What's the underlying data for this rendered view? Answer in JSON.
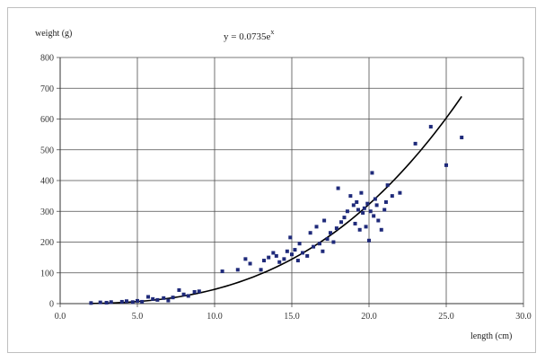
{
  "chart_data": {
    "type": "scatter",
    "xlabel": "length (cm)",
    "ylabel": "weight (g)",
    "equation": {
      "base": "y = 0.0735e",
      "exponent": "x"
    },
    "xlim": [
      0,
      30
    ],
    "ylim": [
      0,
      800
    ],
    "x_ticks": [
      "0.0",
      "5.0",
      "10.0",
      "15.0",
      "20.0",
      "25.0",
      "30.0"
    ],
    "y_ticks": [
      "0",
      "100",
      "200",
      "300",
      "400",
      "500",
      "600",
      "700",
      "800"
    ],
    "grid": true,
    "marker_color": "#1f2a7a",
    "trend_color": "#000000",
    "trendline": {
      "type": "power",
      "a": 0.0735,
      "b": 2.8,
      "x_start": 2,
      "x_end": 26
    },
    "points": [
      [
        2.0,
        2
      ],
      [
        2.6,
        4
      ],
      [
        3.0,
        3
      ],
      [
        3.3,
        5
      ],
      [
        4.0,
        6
      ],
      [
        4.3,
        8
      ],
      [
        4.7,
        5
      ],
      [
        5.0,
        9
      ],
      [
        5.3,
        6
      ],
      [
        5.7,
        22
      ],
      [
        6.0,
        15
      ],
      [
        6.3,
        12
      ],
      [
        6.7,
        18
      ],
      [
        7.0,
        10
      ],
      [
        7.3,
        20
      ],
      [
        7.7,
        44
      ],
      [
        8.0,
        30
      ],
      [
        8.3,
        25
      ],
      [
        8.7,
        38
      ],
      [
        9.0,
        40
      ],
      [
        10.5,
        105
      ],
      [
        11.5,
        110
      ],
      [
        12.0,
        145
      ],
      [
        12.3,
        130
      ],
      [
        13.0,
        110
      ],
      [
        13.2,
        140
      ],
      [
        13.5,
        150
      ],
      [
        13.8,
        165
      ],
      [
        14.0,
        155
      ],
      [
        14.2,
        135
      ],
      [
        14.5,
        145
      ],
      [
        14.7,
        170
      ],
      [
        14.9,
        215
      ],
      [
        15.0,
        160
      ],
      [
        15.2,
        175
      ],
      [
        15.4,
        140
      ],
      [
        15.5,
        195
      ],
      [
        15.7,
        165
      ],
      [
        16.0,
        155
      ],
      [
        16.2,
        230
      ],
      [
        16.4,
        185
      ],
      [
        16.6,
        250
      ],
      [
        16.8,
        195
      ],
      [
        17.0,
        170
      ],
      [
        17.1,
        270
      ],
      [
        17.3,
        210
      ],
      [
        17.5,
        230
      ],
      [
        17.7,
        200
      ],
      [
        17.9,
        245
      ],
      [
        18.0,
        375
      ],
      [
        18.2,
        265
      ],
      [
        18.4,
        280
      ],
      [
        18.6,
        300
      ],
      [
        18.8,
        350
      ],
      [
        19.0,
        320
      ],
      [
        19.1,
        260
      ],
      [
        19.2,
        330
      ],
      [
        19.3,
        305
      ],
      [
        19.4,
        240
      ],
      [
        19.5,
        360
      ],
      [
        19.6,
        295
      ],
      [
        19.7,
        310
      ],
      [
        19.8,
        250
      ],
      [
        19.9,
        325
      ],
      [
        20.0,
        205
      ],
      [
        20.1,
        300
      ],
      [
        20.2,
        425
      ],
      [
        20.3,
        285
      ],
      [
        20.4,
        340
      ],
      [
        20.5,
        320
      ],
      [
        20.6,
        270
      ],
      [
        20.8,
        240
      ],
      [
        21.0,
        305
      ],
      [
        21.1,
        330
      ],
      [
        21.2,
        385
      ],
      [
        21.5,
        350
      ],
      [
        22.0,
        360
      ],
      [
        23.0,
        520
      ],
      [
        24.0,
        575
      ],
      [
        25.0,
        450
      ],
      [
        26.0,
        540
      ]
    ]
  }
}
